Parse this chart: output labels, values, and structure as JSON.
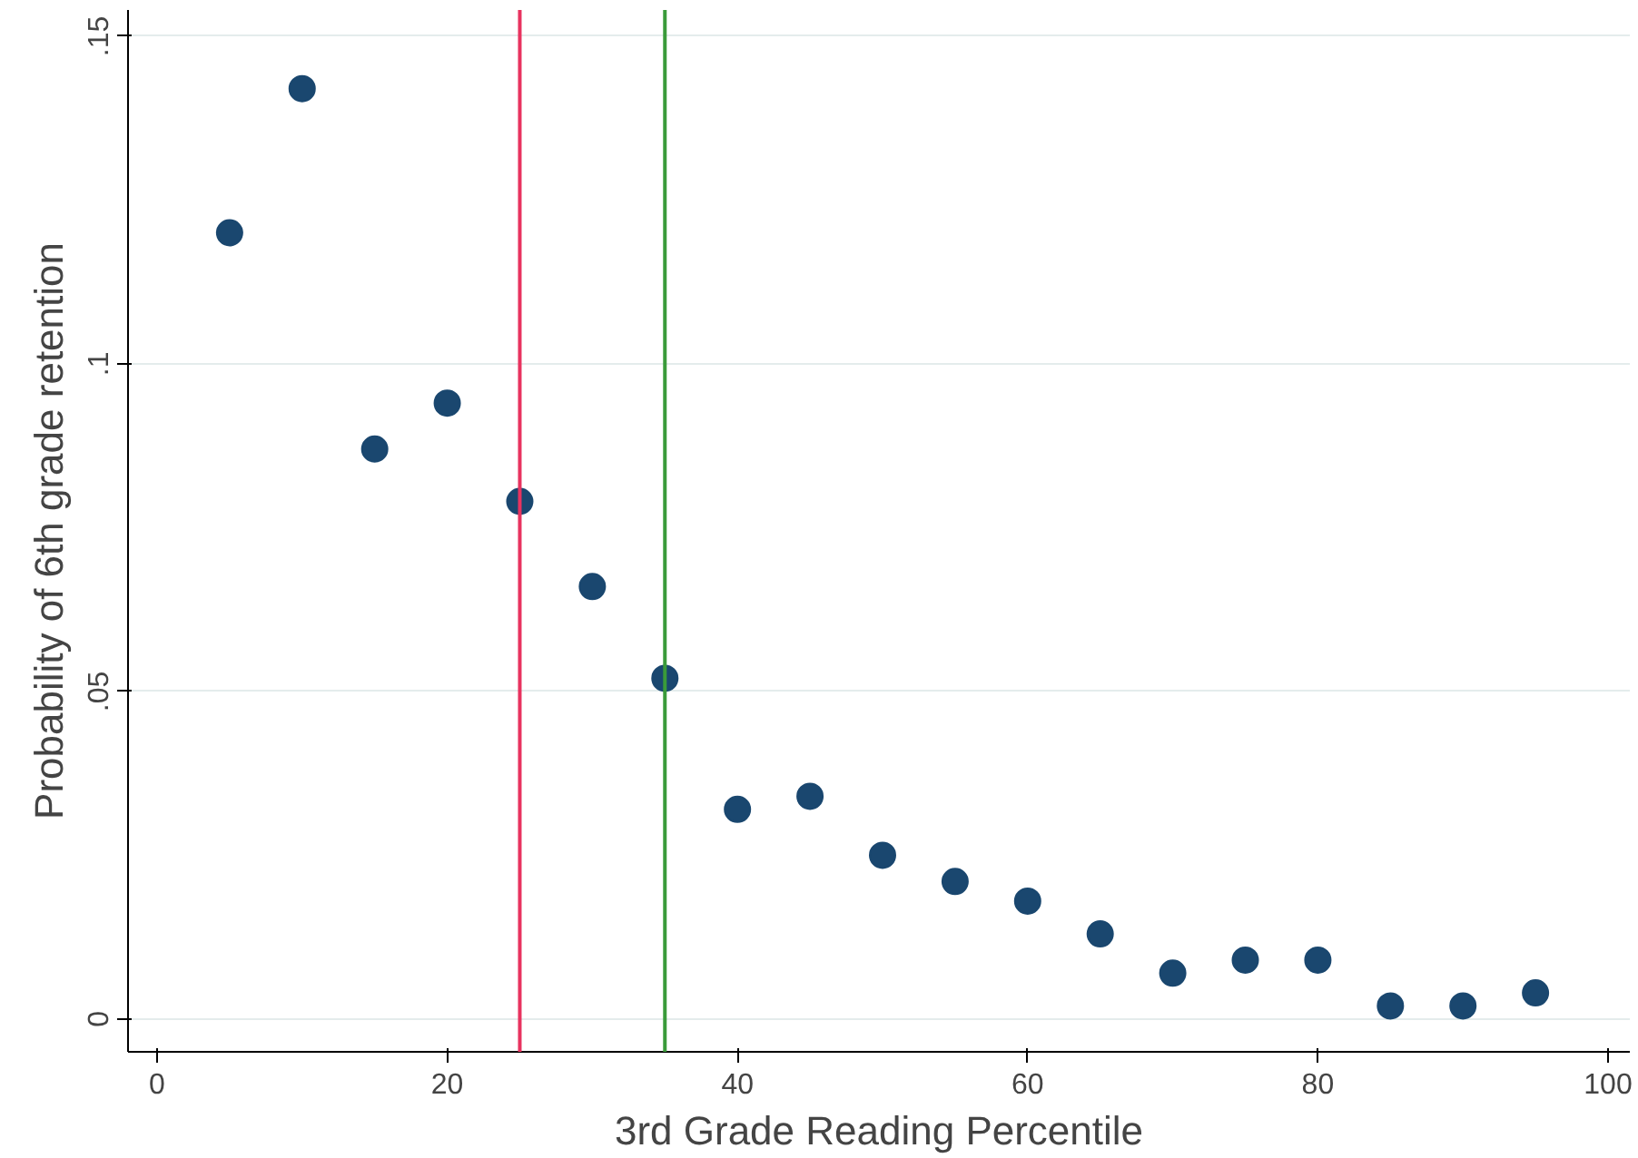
{
  "chart_data": {
    "type": "scatter",
    "xlabel": "3rd Grade Reading Percentile",
    "ylabel": "Probability of 6th grade retention",
    "x": [
      5,
      10,
      15,
      20,
      25,
      30,
      35,
      40,
      45,
      50,
      55,
      60,
      65,
      70,
      75,
      80,
      85,
      90,
      95
    ],
    "series": [
      {
        "color": "#1a476f",
        "values": [
          0.12,
          0.142,
          0.087,
          0.094,
          0.079,
          0.066,
          0.052,
          0.032,
          0.034,
          0.025,
          0.021,
          0.018,
          0.013,
          0.007,
          0.009,
          0.009,
          0.002,
          0.002,
          0.004
        ]
      }
    ],
    "xlim": [
      -2,
      101.5
    ],
    "ylim": [
      -0.005,
      0.154
    ],
    "xticks": [
      0,
      20,
      40,
      60,
      80,
      100
    ],
    "yticks": [
      {
        "value": 0,
        "label": "0"
      },
      {
        "value": 0.05,
        "label": ".05"
      },
      {
        "value": 0.1,
        "label": ".1"
      },
      {
        "value": 0.15,
        "label": ".15"
      }
    ],
    "ref_lines": [
      {
        "axis": "x",
        "value": 25,
        "label": null,
        "color": "#e8335f"
      },
      {
        "axis": "x",
        "value": 35,
        "label": null,
        "color": "#3a9b3a"
      }
    ],
    "grid": "y",
    "marker": "circle"
  }
}
